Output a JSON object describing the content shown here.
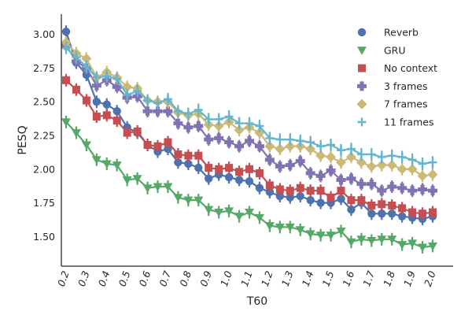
{
  "chart_data": {
    "type": "line",
    "title": "",
    "xlabel": "T60",
    "ylabel": "PESQ",
    "xlim": [
      0.2,
      2.0
    ],
    "ylim": [
      1.28,
      3.15
    ],
    "xticks": [
      "0.2",
      "0.3",
      "0.4",
      "0.5",
      "0.6",
      "0.7",
      "0.8",
      "0.9",
      "1.0",
      "1.1",
      "1.2",
      "1.3",
      "1.4",
      "1.5",
      "1.6",
      "1.7",
      "1.8",
      "1.9",
      "2.0"
    ],
    "yticks": [
      "1.50",
      "1.75",
      "2.00",
      "2.25",
      "2.50",
      "2.75",
      "3.00"
    ],
    "legend_position": "top-right",
    "x": [
      0.2,
      0.25,
      0.3,
      0.35,
      0.4,
      0.45,
      0.5,
      0.55,
      0.6,
      0.65,
      0.7,
      0.75,
      0.8,
      0.85,
      0.9,
      0.95,
      1.0,
      1.05,
      1.1,
      1.15,
      1.2,
      1.25,
      1.3,
      1.35,
      1.4,
      1.45,
      1.5,
      1.55,
      1.6,
      1.65,
      1.7,
      1.75,
      1.8,
      1.85,
      1.9,
      1.95,
      2.0
    ],
    "series": [
      {
        "name": "Reverb",
        "color": "#4c72b0",
        "marker": "circle",
        "values": [
          3.02,
          2.79,
          2.7,
          2.5,
          2.48,
          2.43,
          2.31,
          2.27,
          2.18,
          2.13,
          2.15,
          2.05,
          2.04,
          2.01,
          1.93,
          1.96,
          1.94,
          1.92,
          1.91,
          1.86,
          1.83,
          1.8,
          1.79,
          1.8,
          1.77,
          1.75,
          1.75,
          1.78,
          1.7,
          1.75,
          1.67,
          1.67,
          1.67,
          1.65,
          1.64,
          1.63,
          1.65
        ]
      },
      {
        "name": "GRU",
        "color": "#55a868",
        "marker": "triangle-down",
        "values": [
          2.35,
          2.27,
          2.18,
          2.07,
          2.04,
          2.03,
          1.92,
          1.93,
          1.86,
          1.87,
          1.87,
          1.79,
          1.77,
          1.77,
          1.7,
          1.68,
          1.69,
          1.65,
          1.68,
          1.64,
          1.58,
          1.57,
          1.57,
          1.55,
          1.52,
          1.51,
          1.51,
          1.54,
          1.46,
          1.48,
          1.47,
          1.48,
          1.48,
          1.44,
          1.45,
          1.42,
          1.43
        ]
      },
      {
        "name": "No context",
        "color": "#c44e52",
        "marker": "square",
        "values": [
          2.66,
          2.59,
          2.51,
          2.39,
          2.4,
          2.36,
          2.27,
          2.28,
          2.18,
          2.17,
          2.2,
          2.11,
          2.1,
          2.1,
          2.01,
          2.0,
          2.01,
          1.98,
          2.0,
          1.97,
          1.88,
          1.85,
          1.84,
          1.86,
          1.84,
          1.84,
          1.79,
          1.84,
          1.77,
          1.77,
          1.73,
          1.74,
          1.73,
          1.71,
          1.68,
          1.67,
          1.68
        ]
      },
      {
        "name": "3 frames",
        "color": "#8172b2",
        "marker": "plus",
        "values": [
          2.92,
          2.8,
          2.75,
          2.62,
          2.66,
          2.61,
          2.53,
          2.54,
          2.43,
          2.43,
          2.43,
          2.34,
          2.31,
          2.32,
          2.22,
          2.23,
          2.2,
          2.17,
          2.21,
          2.17,
          2.07,
          2.02,
          2.03,
          2.06,
          1.97,
          1.95,
          1.99,
          1.92,
          1.93,
          1.89,
          1.89,
          1.84,
          1.87,
          1.86,
          1.84,
          1.85,
          1.84
        ]
      },
      {
        "name": "7 frames",
        "color": "#ccb974",
        "marker": "diamond",
        "values": [
          2.94,
          2.86,
          2.82,
          2.68,
          2.72,
          2.68,
          2.61,
          2.6,
          2.51,
          2.5,
          2.5,
          2.42,
          2.4,
          2.41,
          2.33,
          2.32,
          2.35,
          2.29,
          2.31,
          2.27,
          2.17,
          2.15,
          2.17,
          2.17,
          2.15,
          2.1,
          2.09,
          2.05,
          2.09,
          2.05,
          2.02,
          2.03,
          2.03,
          2.0,
          2.0,
          1.95,
          1.96
        ]
      },
      {
        "name": "11 frames",
        "color": "#64b5cd",
        "marker": "cross",
        "values": [
          2.9,
          2.83,
          2.76,
          2.68,
          2.69,
          2.67,
          2.55,
          2.58,
          2.51,
          2.49,
          2.52,
          2.43,
          2.41,
          2.44,
          2.37,
          2.37,
          2.39,
          2.34,
          2.34,
          2.32,
          2.23,
          2.22,
          2.22,
          2.21,
          2.2,
          2.17,
          2.18,
          2.14,
          2.15,
          2.11,
          2.11,
          2.09,
          2.1,
          2.09,
          2.07,
          2.04,
          2.05
        ]
      }
    ]
  }
}
